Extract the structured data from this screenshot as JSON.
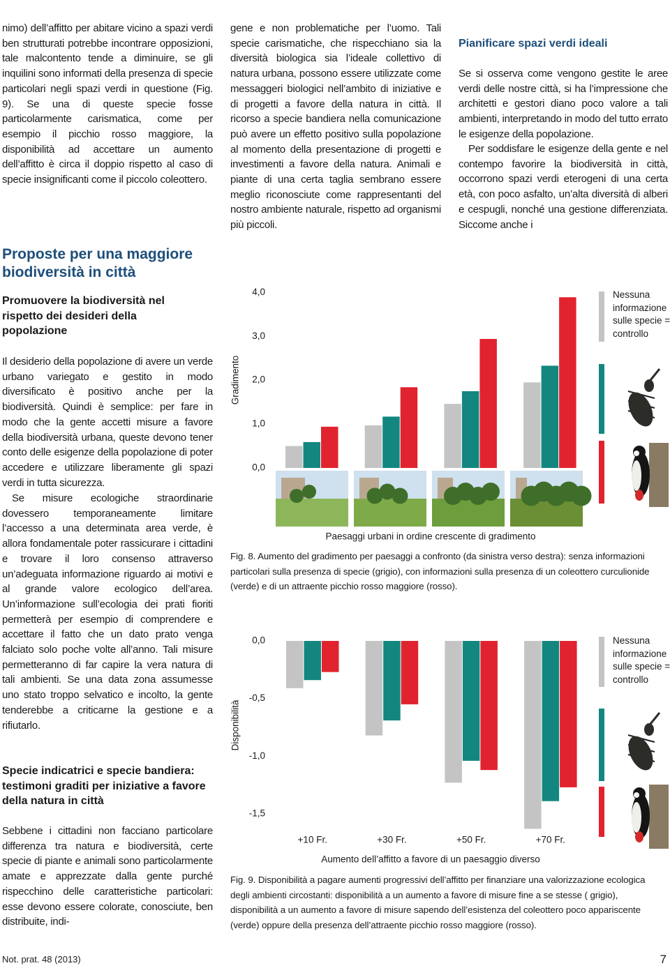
{
  "column_1": {
    "paragraph_1": "nimo) dell’affitto per abitare vicino a spazi verdi ben strutturati potrebbe incontrare opposizioni, tale malcontento tende a diminuire, se gli inquilini sono informati della presenza di specie particolari negli spazi verdi in questione (Fig. 9). Se una di queste specie fosse particolarmente carismatica, come per esempio il picchio rosso maggiore, la disponibilità ad accettare un aumento dell’affitto è circa il doppio rispetto al caso di specie insignificanti come il piccolo coleottero.",
    "heading": "Proposte per una maggiore biodiversità in città",
    "subheading_1": "Promuovere la biodiversità nel rispetto dei desideri della popolazione",
    "paragraph_2": "Il desiderio della popolazione di avere un verde urbano variegato e gestito in modo diversificato è positivo anche per la biodiversità. Quindi è semplice: per fare in modo che la gente accetti misure a favore della biodiversità urbana, queste devono tener conto delle esigenze della popolazione di poter accedere e utilizzare liberamente gli spazi verdi in tutta sicurezza.",
    "paragraph_3": "Se misure ecologiche straordinarie dovessero temporaneamente limitare l’accesso a una determinata area verde, è allora fondamentale poter rassicurare i cittadini e trovare il loro consenso attraverso un’adeguata informazione riguardo ai motivi e al grande valore ecologico dell’area. Un’informazione sull’ecologia dei prati fioriti permetterà per esempio di comprendere e accettare il fatto che un dato prato venga falciato solo poche volte all’anno. Tali misure permetteranno di far capire la vera natura di tali ambienti. Se una data zona assumesse uno stato troppo selvatico e incolto, la gente tenderebbe a criticarne la gestione e a rifiutarlo.",
    "subheading_2": "Specie indicatrici e specie bandiera: testimoni graditi per iniziative a favore della natura in città",
    "paragraph_4": "Sebbene i cittadini non facciano particolare differenza tra natura e biodiversità, certe specie di piante e animali sono particolarmente amate e apprezzate dalla gente purché rispecchino delle caratteristiche particolari: esse devono essere colorate, conosciute, ben distribuite, indi-"
  },
  "column_2": {
    "paragraph_1": "gene e non problematiche per l’uomo. Tali specie carismatiche, che rispecchiano sia la diversità biologica sia l’ideale collettivo di natura urbana, possono essere utilizzate come messaggeri biologici nell’ambito di iniziative e di progetti a favore della natura in città. Il ricorso a specie bandiera nella comunicazione può avere un effetto positivo sulla popolazione al momento della presentazione di progetti e investimenti a favore della natura. Animali e piante di una certa taglia sembrano essere meglio riconosciute come rappresentanti del nostro ambiente naturale, rispetto ad organismi più piccoli."
  },
  "column_3": {
    "heading": "Pianificare spazi verdi ideali",
    "paragraph_1": "Se si osserva come vengono gestite le aree verdi delle nostre città, si ha l’impressione che architetti e gestori diano poco valore a tali ambienti, interpretando in modo del tutto errato le esigenze della popolazione.",
    "paragraph_2": "Per soddisfare le esigenze della gente e nel contempo favorire la biodiversità in città, occorrono spazi verdi eterogeni di una certa età, con poco asfalto, un’alta diversità di alberi e cespugli, nonché una gestione differenziata. Siccome anche i"
  },
  "footer": {
    "journal": "Not. prat. 48 (2013)",
    "page_number": "7"
  },
  "chart_data": [
    {
      "type": "bar",
      "ylabel": "Gradimento",
      "xlabel": "Paesaggi urbani in ordine crescente di gradimento",
      "caption": "Fig. 8. Aumento del gradimento per paesaggi a confronto (da sinistra verso destra): senza informazioni particolari sulla presenza di specie (grigio), con informazioni sulla presenza di un coleottero curculionide (verde) e di un attraente picchio rosso maggiore (rosso).",
      "categories": [
        null,
        null,
        null,
        null
      ],
      "series": [
        {
          "name": "Nessuna informazione sulle specie = controllo",
          "color": "#c4c4c4",
          "values": [
            0.5,
            0.97,
            1.46,
            1.95
          ]
        },
        {
          "color": "#13877f",
          "values": [
            0.59,
            1.17,
            1.75,
            2.33
          ]
        },
        {
          "color": "#e1232f",
          "values": [
            0.94,
            1.84,
            2.94,
            3.89
          ]
        }
      ],
      "ylim": [
        0,
        4.1
      ],
      "yticks": [
        {
          "value": 0,
          "label": "0,0"
        },
        {
          "value": 1,
          "label": "1,0"
        },
        {
          "value": 2,
          "label": "2,0"
        },
        {
          "value": 3,
          "label": "3,0"
        },
        {
          "value": 4,
          "label": "4,0"
        }
      ],
      "grid": false
    },
    {
      "type": "bar",
      "ylabel": "Disponibilità",
      "xlabel": "Aumento dell’affitto a favore di un paesaggio diverso",
      "caption": "Fig. 9. Disponibilità a pagare aumenti progressivi dell’affitto per finanziare una valorizzazione ecologica degli ambienti circostanti: disponibilità a un aumento a favore di misure fine a se stesse ( grigio), disponibilità a un aumento a favore di misure sapendo dell’esistenza del coleottero poco appariscente (verde) oppure della presenza dell’attraente picchio rosso maggiore (rosso).",
      "categories": [
        "+10 Fr.",
        "+30 Fr.",
        "+50 Fr.",
        "+70 Fr."
      ],
      "series": [
        {
          "name": "Nessuna informazione sulle specie = controllo",
          "color": "#c4c4c4",
          "values": [
            -0.41,
            -0.82,
            -1.23,
            -1.63
          ]
        },
        {
          "color": "#13877f",
          "values": [
            -0.34,
            -0.69,
            -1.04,
            -1.39
          ]
        },
        {
          "color": "#e1232f",
          "values": [
            -0.27,
            -0.55,
            -1.12,
            -1.27
          ]
        }
      ],
      "ylim": [
        -1.7,
        0
      ],
      "yticks": [
        {
          "value": 0,
          "label": "0,0"
        },
        {
          "value": -0.5,
          "label": "-0,5"
        },
        {
          "value": -1,
          "label": "-1,0"
        },
        {
          "value": -1.5,
          "label": "-1,5"
        }
      ],
      "grid": false
    }
  ]
}
